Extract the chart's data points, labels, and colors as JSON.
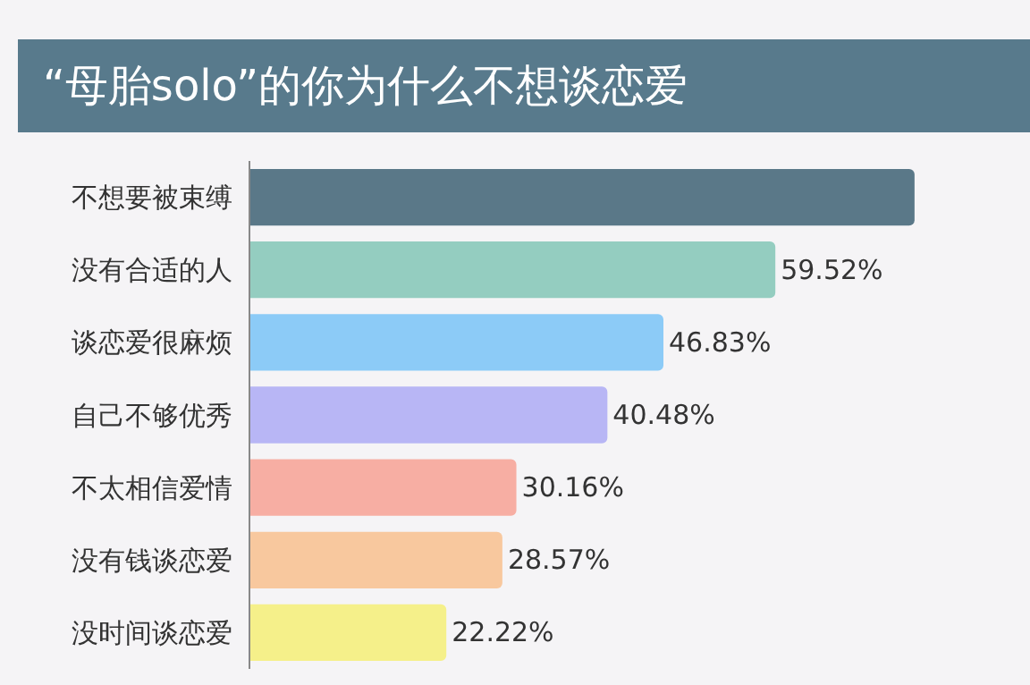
{
  "chart_data": {
    "type": "bar",
    "orientation": "horizontal",
    "title": "“母胎solo”的你为什么不想谈恋爱",
    "categories": [
      "不想要被束缚",
      "没有合适的人",
      "谈恋爱很麻烦",
      "自己不够优秀",
      "不太相信爱情",
      "没有钱谈恋爱",
      "没时间谈恋爱"
    ],
    "values": [
      75.3,
      59.52,
      46.83,
      40.48,
      30.16,
      28.57,
      22.22
    ],
    "colors": [
      "#5a7888",
      "#94cdc0",
      "#8ccbf7",
      "#b8b6f5",
      "#f7aea3",
      "#f8c89e",
      "#f5f08a"
    ],
    "value_labels": [
      null,
      "59.52%",
      "46.83%",
      "40.48%",
      "30.16%",
      "28.57%",
      "22.22%"
    ],
    "grid": false,
    "legend": false
  }
}
